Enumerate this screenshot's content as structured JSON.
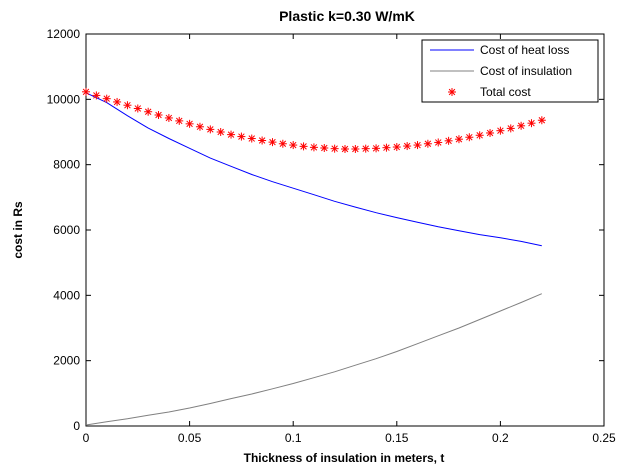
{
  "chart_data": {
    "type": "line",
    "title": "Plastic k=0.30 W/mK",
    "xlabel": "Thickness of insulation in meters, t",
    "ylabel": "cost in Rs",
    "xlim": [
      0,
      0.25
    ],
    "ylim": [
      0,
      12000
    ],
    "xticks": [
      0,
      0.05,
      0.1,
      0.15,
      0.2,
      0.25
    ],
    "xtick_labels": [
      "0",
      "0.05",
      "0.1",
      "0.15",
      "0.2",
      "0.25"
    ],
    "yticks": [
      0,
      2000,
      4000,
      6000,
      8000,
      10000,
      12000
    ],
    "ytick_labels": [
      "0",
      "2000",
      "4000",
      "6000",
      "8000",
      "10000",
      "12000"
    ],
    "grid": false,
    "legend_position": "top-right",
    "x": [
      0,
      0.01,
      0.02,
      0.03,
      0.04,
      0.05,
      0.06,
      0.07,
      0.08,
      0.09,
      0.1,
      0.11,
      0.12,
      0.13,
      0.14,
      0.15,
      0.16,
      0.17,
      0.18,
      0.19,
      0.2,
      0.21,
      0.22
    ],
    "series": [
      {
        "name": "Cost of heat loss",
        "color": "#0000ff",
        "style": "line",
        "values": [
          10200,
          9900,
          9500,
          9120,
          8800,
          8500,
          8200,
          7950,
          7700,
          7480,
          7280,
          7080,
          6880,
          6700,
          6530,
          6380,
          6240,
          6100,
          5980,
          5860,
          5760,
          5650,
          5520
        ]
      },
      {
        "name": "Cost of insulation",
        "color": "#808080",
        "style": "line",
        "values": [
          30,
          130,
          220,
          330,
          430,
          550,
          690,
          840,
          980,
          1140,
          1300,
          1480,
          1660,
          1860,
          2060,
          2280,
          2520,
          2760,
          3000,
          3260,
          3520,
          3780,
          4050
        ]
      },
      {
        "name": "Total cost",
        "color": "#ff0000",
        "style": "markers",
        "marker": "asterisk",
        "x": [
          0,
          0.005,
          0.01,
          0.015,
          0.02,
          0.025,
          0.03,
          0.035,
          0.04,
          0.045,
          0.05,
          0.055,
          0.06,
          0.065,
          0.07,
          0.075,
          0.08,
          0.085,
          0.09,
          0.095,
          0.1,
          0.105,
          0.11,
          0.115,
          0.12,
          0.125,
          0.13,
          0.135,
          0.14,
          0.145,
          0.15,
          0.155,
          0.16,
          0.165,
          0.17,
          0.175,
          0.18,
          0.185,
          0.19,
          0.195,
          0.2,
          0.205,
          0.21,
          0.215,
          0.22
        ],
        "values": [
          10230,
          10120,
          10020,
          9920,
          9820,
          9720,
          9620,
          9520,
          9430,
          9340,
          9250,
          9160,
          9080,
          9000,
          8920,
          8860,
          8800,
          8740,
          8690,
          8640,
          8600,
          8560,
          8530,
          8510,
          8490,
          8480,
          8480,
          8490,
          8500,
          8520,
          8540,
          8570,
          8600,
          8640,
          8680,
          8730,
          8780,
          8840,
          8900,
          8970,
          9040,
          9110,
          9190,
          9270,
          9360
        ]
      }
    ]
  }
}
